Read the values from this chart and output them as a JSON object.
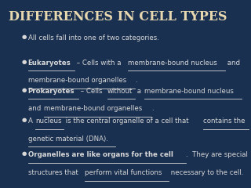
{
  "title": "DIFFERENCES IN CELL TYPES",
  "bg_color": "#1a3050",
  "title_color": "#e8d8b0",
  "text_color": "#d8d8d8",
  "bullet_color": "#d8d8d8",
  "bullet_char": "●",
  "title_fontsize": 11.5,
  "body_fontsize": 6.2,
  "bullets": [
    {
      "plain": "All cells fall into one of two categories."
    },
    {
      "segments": [
        {
          "text": "Eukaryotes",
          "bold": true,
          "underline": true
        },
        {
          "text": " – Cells with a ",
          "bold": false,
          "underline": false
        },
        {
          "text": "membrane-bound nucleus",
          "bold": false,
          "underline": true
        },
        {
          "text": " and",
          "bold": false,
          "underline": false
        },
        {
          "text": "\nmembrane-bound organelles",
          "bold": false,
          "underline": true
        },
        {
          "text": ".",
          "bold": false,
          "underline": false
        }
      ]
    },
    {
      "segments": [
        {
          "text": "Prokaryotes",
          "bold": true,
          "underline": true
        },
        {
          "text": " – Cells ",
          "bold": false,
          "underline": false
        },
        {
          "text": "without",
          "bold": false,
          "underline": true
        },
        {
          "text": " a ",
          "bold": false,
          "underline": false
        },
        {
          "text": "membrane-bound nucleus",
          "bold": false,
          "underline": true
        },
        {
          "text": "\nand ",
          "bold": false,
          "underline": false
        },
        {
          "text": "membrane-bound organelles",
          "bold": false,
          "underline": true
        },
        {
          "text": ".",
          "bold": false,
          "underline": false
        }
      ]
    },
    {
      "segments": [
        {
          "text": "A ",
          "bold": false,
          "underline": false
        },
        {
          "text": "nucleus",
          "bold": false,
          "underline": true
        },
        {
          "text": " is the central organelle of a cell that ",
          "bold": false,
          "underline": false
        },
        {
          "text": "contains the",
          "bold": false,
          "underline": true
        },
        {
          "text": "\n",
          "bold": false,
          "underline": false
        },
        {
          "text": "genetic material (DNA).",
          "bold": false,
          "underline": true
        }
      ]
    },
    {
      "segments": [
        {
          "text": "Organelles are like organs for the cell",
          "bold": true,
          "underline": true
        },
        {
          "text": ".  They are special\nstructures that ",
          "bold": false,
          "underline": false
        },
        {
          "text": "perform vital functions",
          "bold": false,
          "underline": true
        },
        {
          "text": " necessary to the cell.",
          "bold": false,
          "underline": false
        }
      ]
    }
  ]
}
